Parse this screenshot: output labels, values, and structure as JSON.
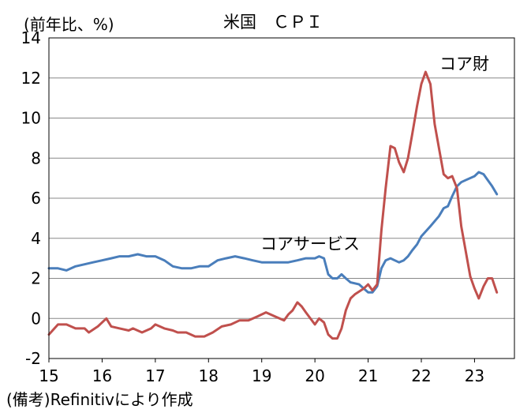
{
  "chart_data": {
    "type": "line",
    "title": "米国　ＣＰＩ",
    "ylabel": "(前年比、%)",
    "source": "(備考)Refinitivにより作成",
    "xlim": [
      2015,
      2023.75
    ],
    "ylim": [
      -2,
      14
    ],
    "yticks": [
      -2,
      0,
      2,
      4,
      6,
      8,
      10,
      12,
      14
    ],
    "xticks": [
      {
        "x": 2015,
        "label": "15"
      },
      {
        "x": 2016,
        "label": "16"
      },
      {
        "x": 2017,
        "label": "17"
      },
      {
        "x": 2018,
        "label": "18"
      },
      {
        "x": 2019,
        "label": "19"
      },
      {
        "x": 2020,
        "label": "20"
      },
      {
        "x": 2021,
        "label": "21"
      },
      {
        "x": 2022,
        "label": "22"
      },
      {
        "x": 2023,
        "label": "23"
      }
    ],
    "grid": "horizontal",
    "series": [
      {
        "name": "コアサービス",
        "color": "#4a7ebb",
        "points": [
          [
            2015.0,
            2.5
          ],
          [
            2015.17,
            2.5
          ],
          [
            2015.33,
            2.4
          ],
          [
            2015.5,
            2.6
          ],
          [
            2015.67,
            2.7
          ],
          [
            2015.83,
            2.8
          ],
          [
            2016.0,
            2.9
          ],
          [
            2016.17,
            3.0
          ],
          [
            2016.33,
            3.1
          ],
          [
            2016.5,
            3.1
          ],
          [
            2016.67,
            3.2
          ],
          [
            2016.83,
            3.1
          ],
          [
            2017.0,
            3.1
          ],
          [
            2017.17,
            2.9
          ],
          [
            2017.33,
            2.6
          ],
          [
            2017.5,
            2.5
          ],
          [
            2017.67,
            2.5
          ],
          [
            2017.83,
            2.6
          ],
          [
            2018.0,
            2.6
          ],
          [
            2018.17,
            2.9
          ],
          [
            2018.33,
            3.0
          ],
          [
            2018.5,
            3.1
          ],
          [
            2018.67,
            3.0
          ],
          [
            2018.83,
            2.9
          ],
          [
            2019.0,
            2.8
          ],
          [
            2019.17,
            2.8
          ],
          [
            2019.33,
            2.8
          ],
          [
            2019.5,
            2.8
          ],
          [
            2019.67,
            2.9
          ],
          [
            2019.83,
            3.0
          ],
          [
            2020.0,
            3.0
          ],
          [
            2020.08,
            3.1
          ],
          [
            2020.17,
            3.0
          ],
          [
            2020.25,
            2.2
          ],
          [
            2020.33,
            2.0
          ],
          [
            2020.42,
            2.0
          ],
          [
            2020.5,
            2.2
          ],
          [
            2020.58,
            2.0
          ],
          [
            2020.67,
            1.8
          ],
          [
            2020.83,
            1.7
          ],
          [
            2021.0,
            1.3
          ],
          [
            2021.08,
            1.3
          ],
          [
            2021.17,
            1.6
          ],
          [
            2021.25,
            2.5
          ],
          [
            2021.33,
            2.9
          ],
          [
            2021.42,
            3.0
          ],
          [
            2021.5,
            2.9
          ],
          [
            2021.58,
            2.8
          ],
          [
            2021.67,
            2.9
          ],
          [
            2021.75,
            3.1
          ],
          [
            2021.83,
            3.4
          ],
          [
            2021.92,
            3.7
          ],
          [
            2022.0,
            4.1
          ],
          [
            2022.17,
            4.6
          ],
          [
            2022.33,
            5.1
          ],
          [
            2022.42,
            5.5
          ],
          [
            2022.5,
            5.6
          ],
          [
            2022.58,
            6.1
          ],
          [
            2022.67,
            6.6
          ],
          [
            2022.75,
            6.8
          ],
          [
            2022.83,
            6.9
          ],
          [
            2023.0,
            7.1
          ],
          [
            2023.08,
            7.3
          ],
          [
            2023.17,
            7.2
          ],
          [
            2023.25,
            6.9
          ],
          [
            2023.33,
            6.6
          ],
          [
            2023.42,
            6.2
          ]
        ]
      },
      {
        "name": "コア財",
        "color": "#c0504d",
        "points": [
          [
            2015.0,
            -0.8
          ],
          [
            2015.17,
            -0.3
          ],
          [
            2015.33,
            -0.3
          ],
          [
            2015.5,
            -0.5
          ],
          [
            2015.67,
            -0.5
          ],
          [
            2015.75,
            -0.7
          ],
          [
            2015.92,
            -0.4
          ],
          [
            2016.08,
            0.0
          ],
          [
            2016.17,
            -0.4
          ],
          [
            2016.33,
            -0.5
          ],
          [
            2016.5,
            -0.6
          ],
          [
            2016.58,
            -0.5
          ],
          [
            2016.75,
            -0.7
          ],
          [
            2016.92,
            -0.5
          ],
          [
            2017.0,
            -0.3
          ],
          [
            2017.17,
            -0.5
          ],
          [
            2017.33,
            -0.6
          ],
          [
            2017.42,
            -0.7
          ],
          [
            2017.58,
            -0.7
          ],
          [
            2017.75,
            -0.9
          ],
          [
            2017.92,
            -0.9
          ],
          [
            2018.08,
            -0.7
          ],
          [
            2018.25,
            -0.4
          ],
          [
            2018.42,
            -0.3
          ],
          [
            2018.58,
            -0.1
          ],
          [
            2018.75,
            -0.1
          ],
          [
            2018.92,
            0.1
          ],
          [
            2019.08,
            0.3
          ],
          [
            2019.25,
            0.1
          ],
          [
            2019.42,
            -0.1
          ],
          [
            2019.5,
            0.2
          ],
          [
            2019.58,
            0.4
          ],
          [
            2019.67,
            0.8
          ],
          [
            2019.75,
            0.6
          ],
          [
            2019.83,
            0.3
          ],
          [
            2020.0,
            -0.3
          ],
          [
            2020.08,
            0.0
          ],
          [
            2020.17,
            -0.2
          ],
          [
            2020.25,
            -0.8
          ],
          [
            2020.33,
            -1.0
          ],
          [
            2020.42,
            -1.0
          ],
          [
            2020.5,
            -0.5
          ],
          [
            2020.58,
            0.4
          ],
          [
            2020.67,
            1.0
          ],
          [
            2020.75,
            1.2
          ],
          [
            2020.92,
            1.5
          ],
          [
            2021.0,
            1.7
          ],
          [
            2021.08,
            1.4
          ],
          [
            2021.17,
            1.7
          ],
          [
            2021.25,
            4.4
          ],
          [
            2021.33,
            6.5
          ],
          [
            2021.42,
            8.6
          ],
          [
            2021.5,
            8.5
          ],
          [
            2021.58,
            7.8
          ],
          [
            2021.67,
            7.3
          ],
          [
            2021.75,
            8.0
          ],
          [
            2021.83,
            9.2
          ],
          [
            2021.92,
            10.6
          ],
          [
            2022.0,
            11.7
          ],
          [
            2022.08,
            12.3
          ],
          [
            2022.17,
            11.7
          ],
          [
            2022.25,
            9.7
          ],
          [
            2022.42,
            7.2
          ],
          [
            2022.5,
            7.0
          ],
          [
            2022.58,
            7.1
          ],
          [
            2022.67,
            6.5
          ],
          [
            2022.75,
            4.6
          ],
          [
            2022.92,
            2.1
          ],
          [
            2023.0,
            1.5
          ],
          [
            2023.08,
            1.0
          ],
          [
            2023.17,
            1.6
          ],
          [
            2023.25,
            2.0
          ],
          [
            2023.33,
            2.0
          ],
          [
            2023.42,
            1.3
          ]
        ]
      }
    ],
    "annotations": [
      {
        "text": "コア財",
        "color": "#c0504d"
      },
      {
        "text": "コアサービス",
        "color": "#4a7ebb"
      }
    ]
  }
}
